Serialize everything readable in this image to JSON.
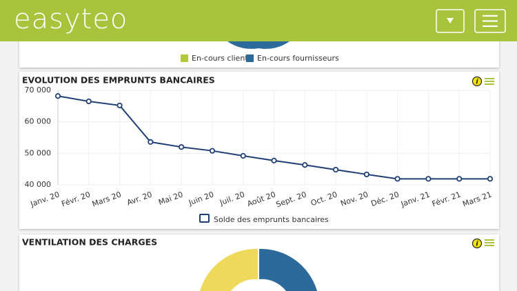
{
  "header": {
    "logo": "easyteo"
  },
  "top_card": {
    "legend": [
      {
        "name": "En-cours client",
        "color": "#b3cb3a"
      },
      {
        "name": "En-cours fournisseurs",
        "color": "#2d6a9c"
      }
    ]
  },
  "chart_data": {
    "type": "line",
    "title": "EVOLUTION DES EMPRUNTS BANCAIRES",
    "categories": [
      "Janv. 20",
      "Févr. 20",
      "Mars 20",
      "Avr. 20",
      "Mai 20",
      "Juin 20",
      "Juil. 20",
      "Août 20",
      "Sept. 20",
      "Oct. 20",
      "Nov. 20",
      "Déc. 20",
      "Janv. 21",
      "Févr. 21",
      "Mars 21"
    ],
    "series": [
      {
        "name": "Solde des emprunts bancaires",
        "color": "#1f3f74",
        "values": [
          68200,
          66500,
          65200,
          53600,
          52000,
          50800,
          49200,
          47700,
          46300,
          44800,
          43300,
          41900,
          41900,
          41900,
          41900
        ]
      }
    ],
    "ylim": [
      40000,
      70000
    ],
    "yticks": [
      {
        "value": 40000,
        "label": "40 000"
      },
      {
        "value": 50000,
        "label": "50 000"
      },
      {
        "value": 60000,
        "label": "60 000"
      },
      {
        "value": 70000,
        "label": "70 000"
      }
    ],
    "grid": true,
    "legend": "bottom"
  },
  "bottom_card": {
    "title": "VENTILATION DES CHARGES",
    "colors": [
      "#efd95a",
      "#2d6a9c"
    ]
  }
}
